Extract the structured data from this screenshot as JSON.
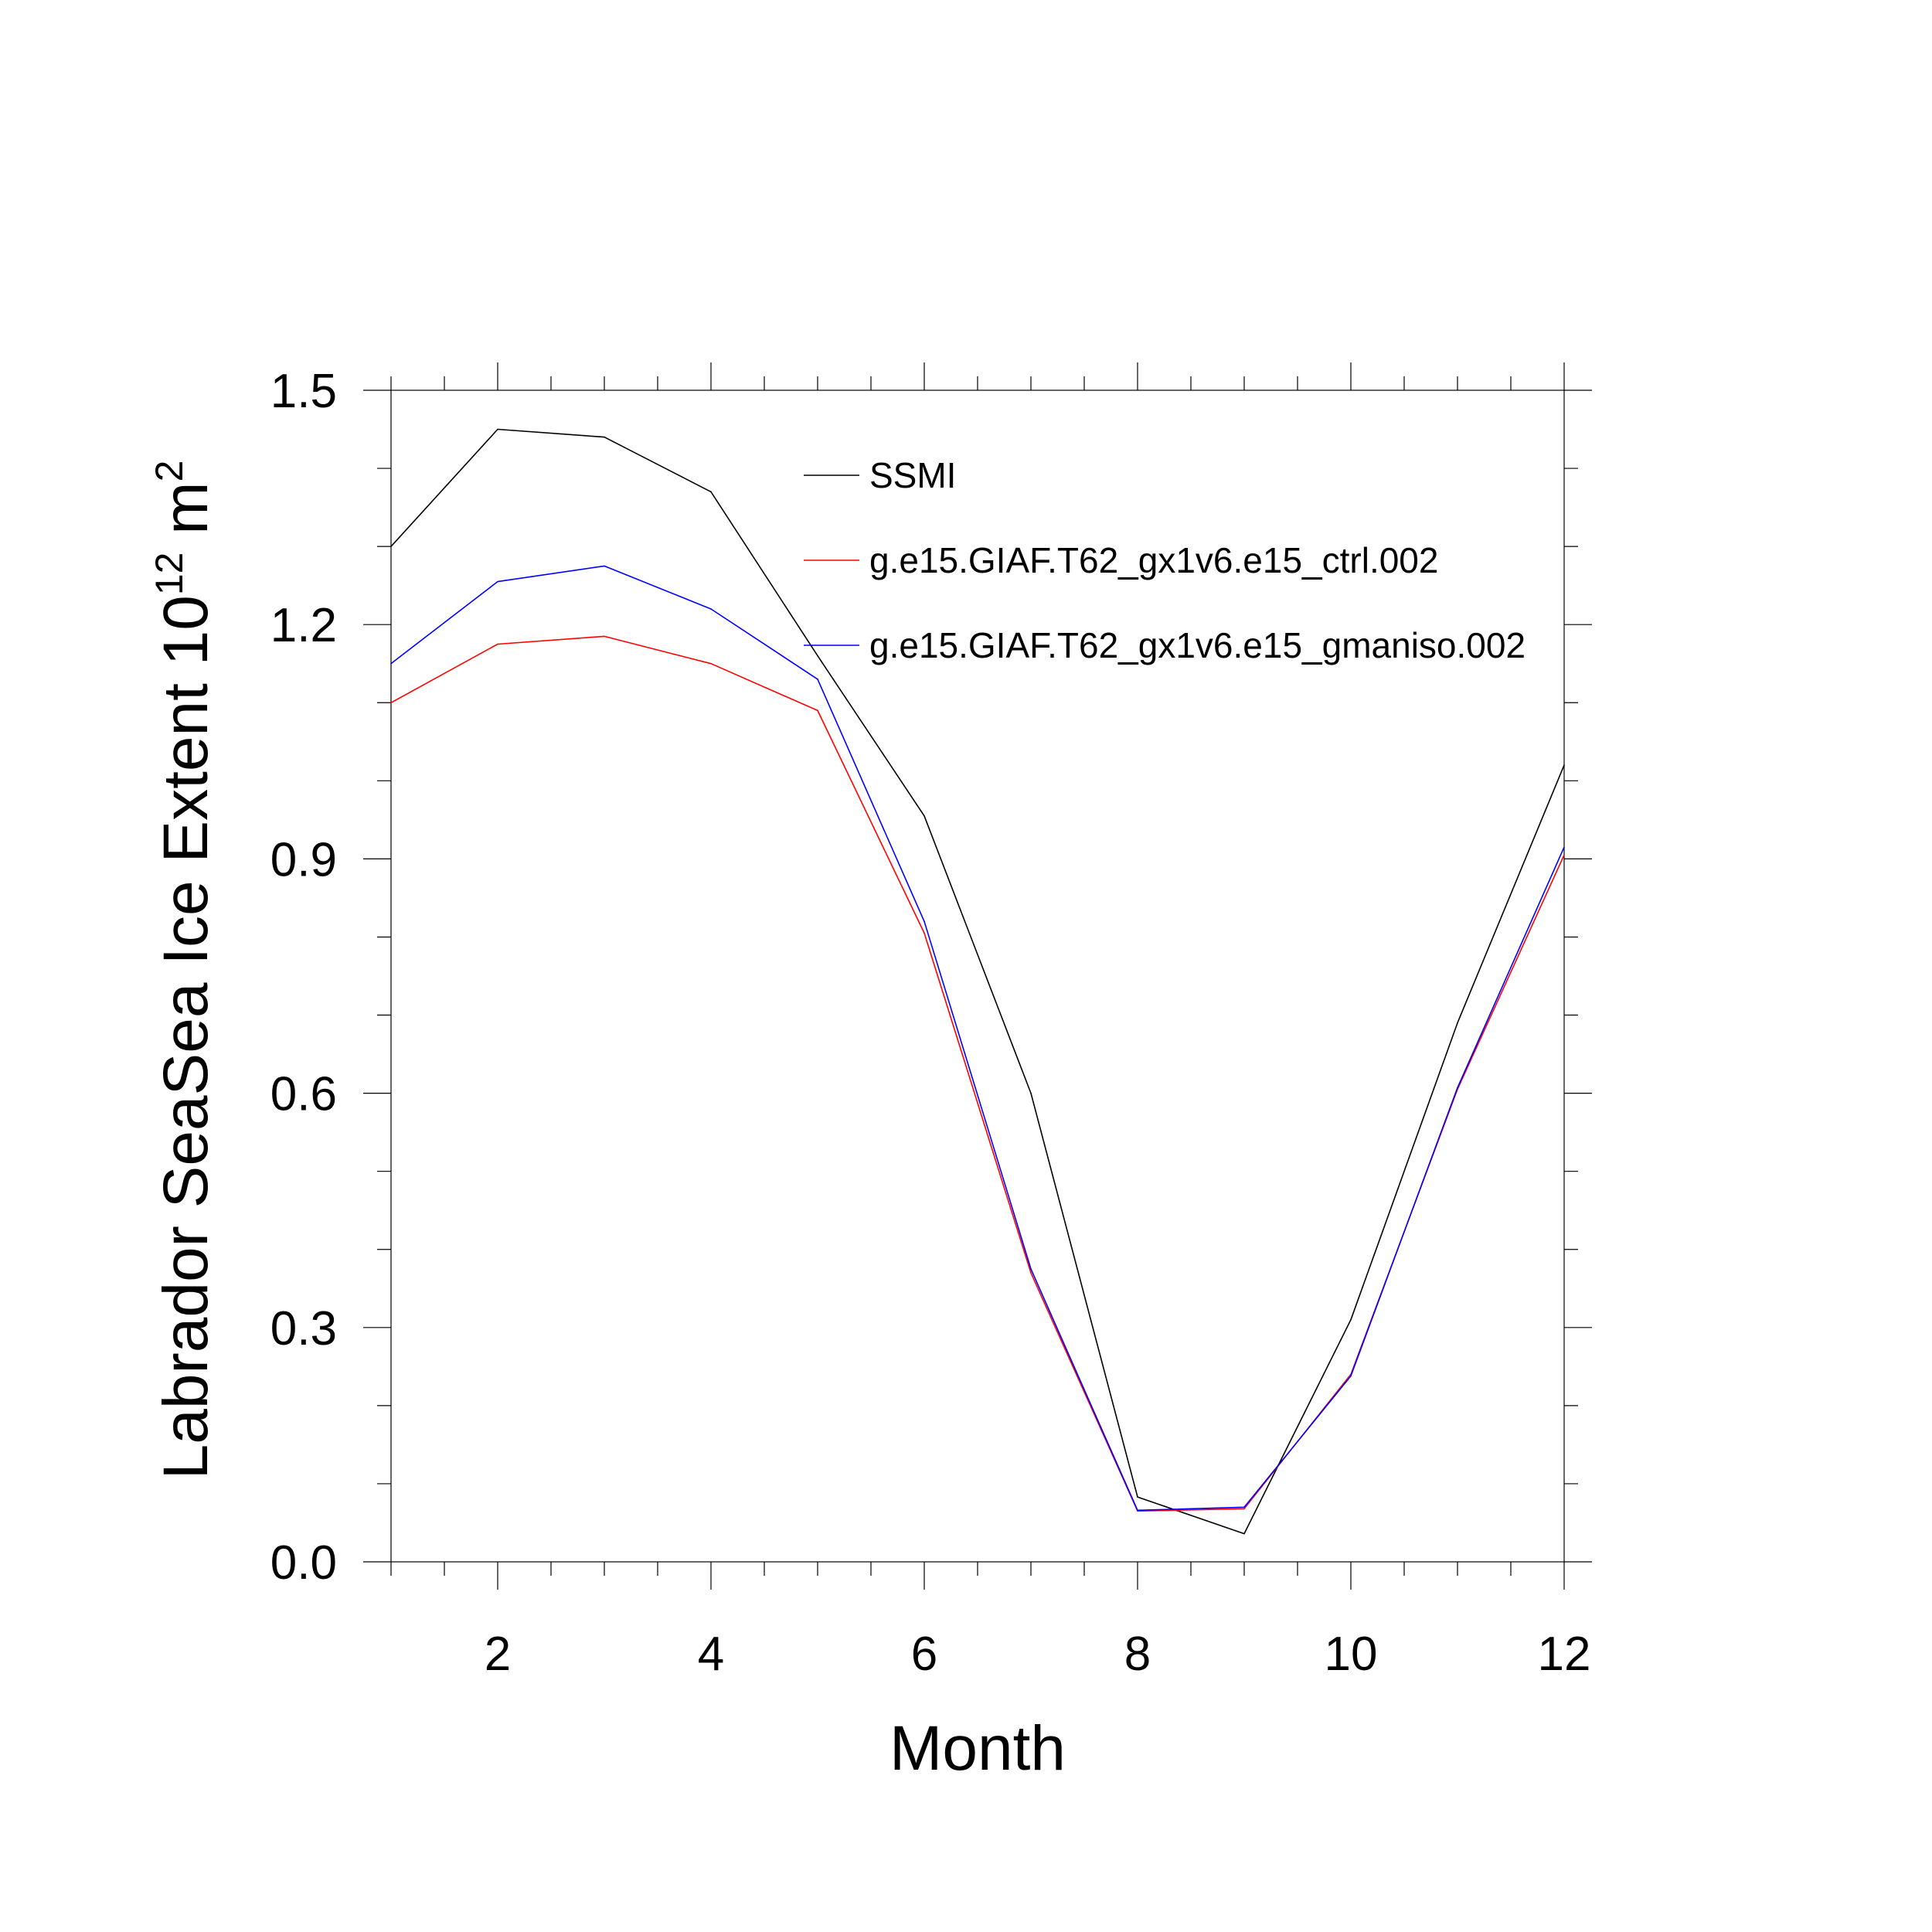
{
  "chart_data": {
    "type": "line",
    "xlabel": "Month",
    "ylabel": {
      "prefix": "Labrador SeaSea Ice Extent 10",
      "exponent": "12",
      "unit": " m",
      "unit_exponent": "2"
    },
    "xlim": [
      1,
      12
    ],
    "ylim": [
      0,
      1.5
    ],
    "x": [
      1,
      2,
      3,
      4,
      5,
      6,
      7,
      8,
      9,
      10,
      11,
      12
    ],
    "x_ticks": [
      2,
      4,
      6,
      8,
      10,
      12
    ],
    "x_tick_labels": [
      "2",
      "4",
      "6",
      "8",
      "10",
      "12"
    ],
    "y_ticks": [
      0,
      0.3,
      0.6,
      0.9,
      1.2,
      1.5
    ],
    "y_tick_labels": [
      "0.0",
      "0.3",
      "0.6",
      "0.9",
      "1.2",
      "1.5"
    ],
    "grid": false,
    "legend_position": "top-right",
    "series": [
      {
        "name": "SSMI",
        "color": "#000000",
        "values": [
          1.3,
          1.45,
          1.44,
          1.37,
          1.16,
          0.955,
          0.6,
          0.083,
          0.036,
          0.31,
          0.69,
          1.02
        ]
      },
      {
        "name": "g.e15.GIAF.T62_gx1v6.e15_ctrl.002",
        "color": "#ff0000",
        "values": [
          1.1,
          1.175,
          1.185,
          1.15,
          1.09,
          0.805,
          0.37,
          0.065,
          0.068,
          0.24,
          0.605,
          0.905
        ]
      },
      {
        "name": "g.e15.GIAF.T62_gx1v6.e15_gmaniso.002",
        "color": "#0000ff",
        "values": [
          1.15,
          1.255,
          1.275,
          1.22,
          1.13,
          0.82,
          0.375,
          0.066,
          0.07,
          0.238,
          0.607,
          0.915
        ]
      }
    ]
  }
}
